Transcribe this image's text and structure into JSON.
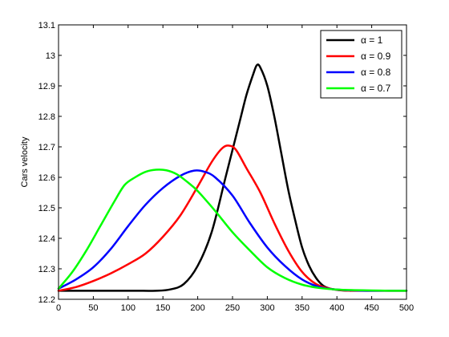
{
  "chart_data": {
    "type": "line",
    "title": "",
    "xlabel": "",
    "ylabel": "Cars velocity",
    "xlim": [
      0,
      500
    ],
    "ylim": [
      12.2,
      13.1
    ],
    "xticks": [
      "0",
      "50",
      "100",
      "150",
      "200",
      "250",
      "300",
      "350",
      "400",
      "450",
      "500"
    ],
    "yticks": [
      "12.2",
      "12.3",
      "12.4",
      "12.5",
      "12.6",
      "12.7",
      "12.8",
      "12.9",
      "13",
      "13.1"
    ],
    "grid": false,
    "legend_position": "top-right",
    "series": [
      {
        "name": "α = 1",
        "color": "#000000",
        "x": [
          0,
          100,
          140,
          160,
          180,
          200,
          220,
          240,
          260,
          270,
          280,
          285,
          290,
          300,
          310,
          320,
          330,
          340,
          350,
          360,
          370,
          380,
          390,
          400,
          410,
          420
        ],
        "y": [
          12.228,
          12.228,
          12.228,
          12.232,
          12.25,
          12.31,
          12.42,
          12.6,
          12.78,
          12.87,
          12.94,
          12.968,
          12.96,
          12.9,
          12.8,
          12.68,
          12.56,
          12.46,
          12.37,
          12.31,
          12.27,
          12.245,
          12.235,
          12.231,
          12.229,
          12.228
        ]
      },
      {
        "name": "α = 0.9",
        "color": "#ff0000",
        "x": [
          0,
          25,
          50,
          75,
          100,
          125,
          150,
          175,
          200,
          220,
          235,
          245,
          255,
          270,
          290,
          310,
          330,
          350,
          370,
          390,
          410,
          430,
          500
        ],
        "y": [
          12.228,
          12.24,
          12.26,
          12.285,
          12.315,
          12.35,
          12.405,
          12.475,
          12.57,
          12.65,
          12.695,
          12.704,
          12.69,
          12.63,
          12.55,
          12.45,
          12.36,
          12.29,
          12.25,
          12.235,
          12.229,
          12.228,
          12.228
        ]
      },
      {
        "name": "α = 0.8",
        "color": "#0000ff",
        "x": [
          0,
          25,
          50,
          75,
          100,
          125,
          150,
          175,
          195,
          210,
          225,
          250,
          275,
          300,
          325,
          350,
          375,
          400,
          425,
          450,
          500
        ],
        "y": [
          12.235,
          12.265,
          12.305,
          12.365,
          12.44,
          12.51,
          12.565,
          12.605,
          12.622,
          12.618,
          12.6,
          12.54,
          12.45,
          12.37,
          12.31,
          12.265,
          12.24,
          12.232,
          12.229,
          12.228,
          12.228
        ]
      },
      {
        "name": "α = 0.7",
        "color": "#00ff00",
        "x": [
          0,
          20,
          40,
          60,
          80,
          95,
          110,
          125,
          140,
          155,
          170,
          185,
          200,
          225,
          250,
          275,
          300,
          325,
          350,
          375,
          400,
          425,
          450,
          475,
          500
        ],
        "y": [
          12.235,
          12.29,
          12.36,
          12.44,
          12.52,
          12.575,
          12.6,
          12.618,
          12.625,
          12.623,
          12.61,
          12.585,
          12.555,
          12.49,
          12.42,
          12.36,
          12.305,
          12.27,
          12.248,
          12.237,
          12.232,
          12.23,
          12.229,
          12.228,
          12.228
        ]
      }
    ]
  }
}
